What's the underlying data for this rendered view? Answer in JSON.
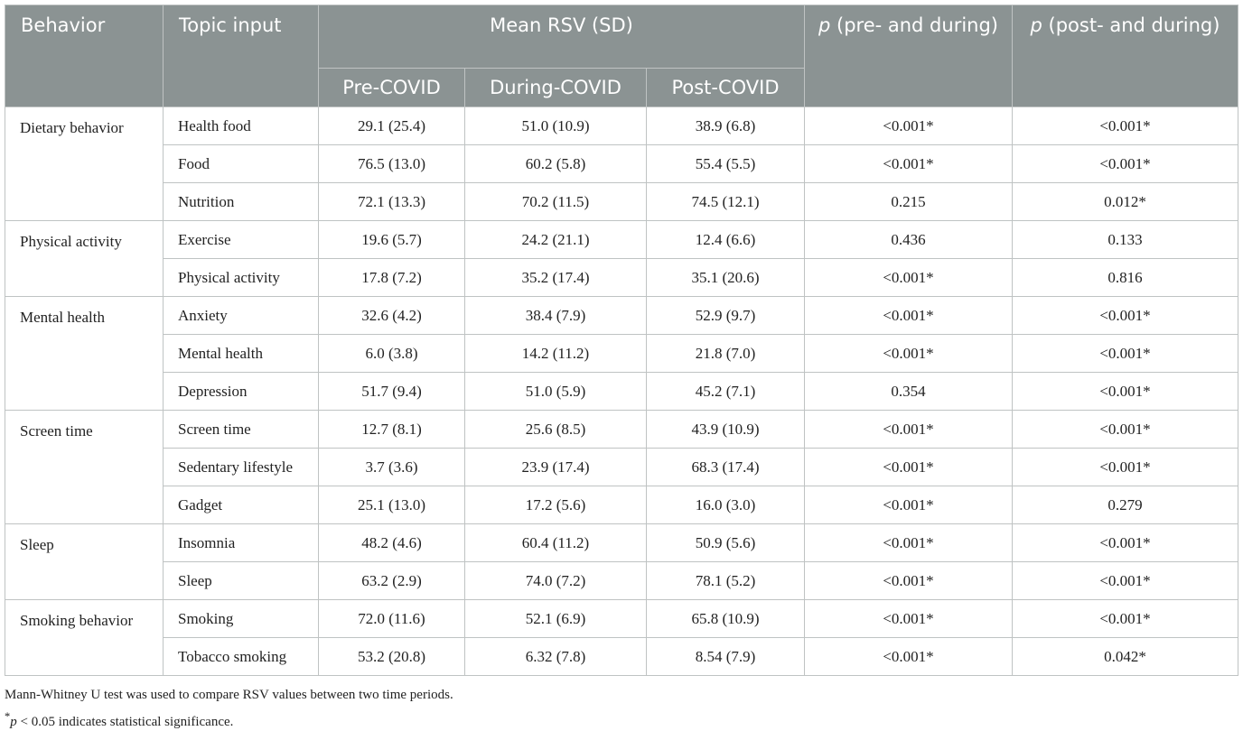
{
  "header": {
    "behavior": "Behavior",
    "topic": "Topic input",
    "mean": "Mean RSV (SD)",
    "periods": [
      "Pre-COVID",
      "During-COVID",
      "Post-COVID"
    ],
    "p_pre": {
      "italic": "p",
      "text": " (pre- and during)"
    },
    "p_post": {
      "italic": "p",
      "text": " (post- and during)"
    }
  },
  "groups": [
    {
      "behavior": "Dietary behavior",
      "rows": [
        [
          "Health food",
          "29.1 (25.4)",
          "51.0 (10.9)",
          "38.9 (6.8)",
          "<0.001*",
          "<0.001*"
        ],
        [
          "Food",
          "76.5 (13.0)",
          "60.2 (5.8)",
          "55.4 (5.5)",
          "<0.001*",
          "<0.001*"
        ],
        [
          "Nutrition",
          "72.1 (13.3)",
          "70.2 (11.5)",
          "74.5 (12.1)",
          "0.215",
          "0.012*"
        ]
      ]
    },
    {
      "behavior": "Physical activity",
      "rows": [
        [
          "Exercise",
          "19.6 (5.7)",
          "24.2 (21.1)",
          "12.4 (6.6)",
          "0.436",
          "0.133"
        ],
        [
          "Physical activity",
          "17.8 (7.2)",
          "35.2 (17.4)",
          "35.1 (20.6)",
          "<0.001*",
          "0.816"
        ]
      ]
    },
    {
      "behavior": "Mental health",
      "rows": [
        [
          "Anxiety",
          "32.6 (4.2)",
          "38.4 (7.9)",
          "52.9 (9.7)",
          "<0.001*",
          "<0.001*"
        ],
        [
          "Mental health",
          "6.0 (3.8)",
          "14.2 (11.2)",
          "21.8 (7.0)",
          "<0.001*",
          "<0.001*"
        ],
        [
          "Depression",
          "51.7 (9.4)",
          "51.0 (5.9)",
          "45.2 (7.1)",
          "0.354",
          "<0.001*"
        ]
      ]
    },
    {
      "behavior": "Screen time",
      "rows": [
        [
          "Screen time",
          "12.7 (8.1)",
          "25.6 (8.5)",
          "43.9 (10.9)",
          "<0.001*",
          "<0.001*"
        ],
        [
          "Sedentary lifestyle",
          "3.7 (3.6)",
          "23.9 (17.4)",
          "68.3 (17.4)",
          "<0.001*",
          "<0.001*"
        ],
        [
          "Gadget",
          "25.1 (13.0)",
          "17.2 (5.6)",
          "16.0 (3.0)",
          "<0.001*",
          "0.279"
        ]
      ]
    },
    {
      "behavior": "Sleep",
      "rows": [
        [
          "Insomnia",
          "48.2 (4.6)",
          "60.4 (11.2)",
          "50.9 (5.6)",
          "<0.001*",
          "<0.001*"
        ],
        [
          "Sleep",
          "63.2 (2.9)",
          "74.0 (7.2)",
          "78.1 (5.2)",
          "<0.001*",
          "<0.001*"
        ]
      ]
    },
    {
      "behavior": "Smoking behavior",
      "rows": [
        [
          "Smoking",
          "72.0 (11.6)",
          "52.1 (6.9)",
          "65.8 (10.9)",
          "<0.001*",
          "<0.001*"
        ],
        [
          "Tobacco smoking",
          "53.2 (20.8)",
          "6.32 (7.8)",
          "8.54 (7.9)",
          "<0.001*",
          "0.042*"
        ]
      ]
    }
  ],
  "footnotes": {
    "line1": "Mann-Whitney U test was used to compare RSV values between two time periods.",
    "line2": {
      "star": "*",
      "italic": "p",
      "text": " < 0.05 indicates statistical significance."
    }
  }
}
